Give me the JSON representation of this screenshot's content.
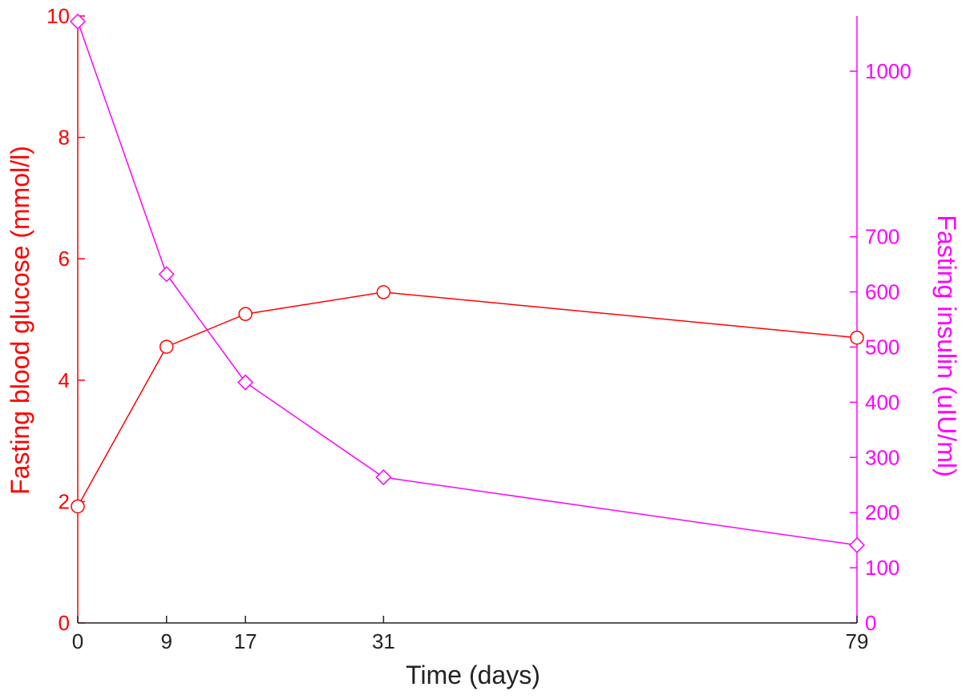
{
  "chart_data": {
    "type": "line",
    "xlabel": "Time (days)",
    "x": [
      0,
      9,
      17,
      31,
      79
    ],
    "xlim": [
      0,
      79
    ],
    "x_ticks": [
      "0",
      "9",
      "17",
      "31",
      "79"
    ],
    "x_scale": "categorical-evenly-positioned-by-value",
    "left_axis": {
      "label": "Fasting blood glucose (mmol/l)",
      "color": "#ff0000",
      "lim": [
        0,
        10
      ],
      "ticks": [
        "0",
        "2",
        "4",
        "6",
        "8",
        "10"
      ]
    },
    "right_axis": {
      "label": "Fasting insulin (uIU/ml)",
      "color": "#ff00ff",
      "lim": [
        0,
        1100
      ],
      "ticks": [
        "0",
        "100",
        "200",
        "300",
        "400",
        "500",
        "600",
        "700",
        "1000"
      ]
    },
    "series": [
      {
        "axis": "left",
        "color": "#ff0000",
        "marker": "circle",
        "values": [
          1.92,
          4.55,
          5.09,
          5.45,
          4.7
        ]
      },
      {
        "axis": "right",
        "color": "#ff00ff",
        "marker": "diamond",
        "values": [
          1090,
          632,
          436,
          264,
          141
        ]
      }
    ],
    "grid": false,
    "legend": "none"
  }
}
